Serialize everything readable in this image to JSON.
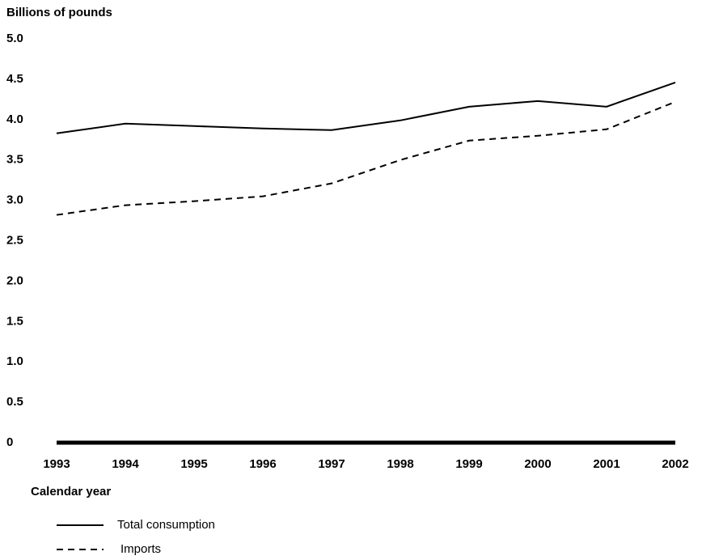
{
  "chart_data": {
    "type": "line",
    "y_label": "Billions of pounds",
    "x_label": "Calendar year",
    "x": [
      1993,
      1994,
      1995,
      1996,
      1997,
      1998,
      1999,
      2000,
      2001,
      2002
    ],
    "xlim": [
      1993,
      2002
    ],
    "xticks": [
      1993,
      1994,
      1995,
      1996,
      1997,
      1998,
      1999,
      2000,
      2001,
      2002
    ],
    "ylim": [
      0,
      5
    ],
    "yticks": [
      0,
      0.5,
      {
        "value": 1,
        "label": "1.0"
      },
      1.5,
      {
        "value": 2,
        "label": "2.0"
      },
      2.5,
      {
        "value": 3,
        "label": "3.0"
      },
      3.5,
      {
        "value": 4,
        "label": "4.0"
      },
      4.5,
      {
        "value": 5,
        "label": "5.0"
      }
    ],
    "grid": false,
    "series": [
      {
        "name": "Total consumption",
        "color": "#000000",
        "style": "solid",
        "values": [
          3.83,
          3.95,
          3.92,
          3.89,
          3.87,
          3.99,
          4.16,
          4.23,
          4.16,
          4.46
        ]
      },
      {
        "name": "Imports",
        "color": "#000000",
        "style": "dashed",
        "values": [
          2.82,
          2.94,
          2.99,
          3.05,
          3.21,
          3.5,
          3.74,
          3.8,
          3.88,
          4.22
        ]
      }
    ]
  }
}
